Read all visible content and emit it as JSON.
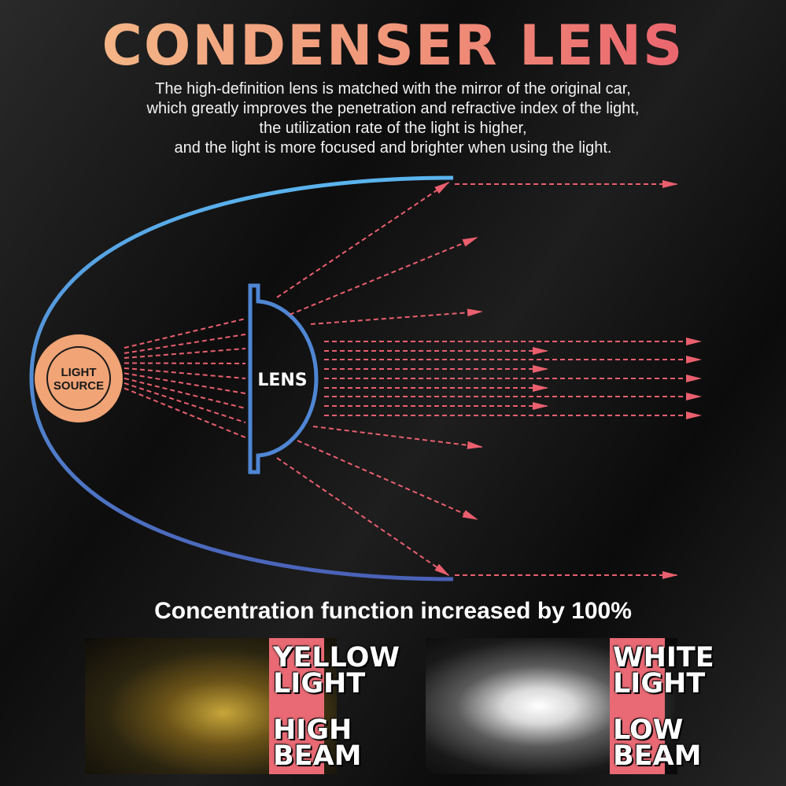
{
  "title": "CONDENSER LENS",
  "description": [
    "The high-definition lens is matched with the mirror of the original car,",
    "which greatly improves the penetration and refractive index of the light,",
    "the utilization rate of the light is higher,",
    "and the light is more focused and brighter when using the light."
  ],
  "diagram": {
    "light_source_line1": "LIGHT",
    "light_source_line2": "SOURCE",
    "lens_label": "LENS",
    "colors": {
      "reflector_top": "#5ab4ee",
      "reflector_bottom": "#4a62b8",
      "ray": "#ea5f6e",
      "source_fill": "#f1a476"
    }
  },
  "concentration_text": "Concentration function increased by 100%",
  "panels": {
    "yellow": {
      "line1": "YELLOW",
      "line2": "LIGHT",
      "line3": "HIGH",
      "line4": "BEAM"
    },
    "white": {
      "line1": "WHITE",
      "line2": "LIGHT",
      "line3": "LOW",
      "line4": "BEAM"
    }
  }
}
